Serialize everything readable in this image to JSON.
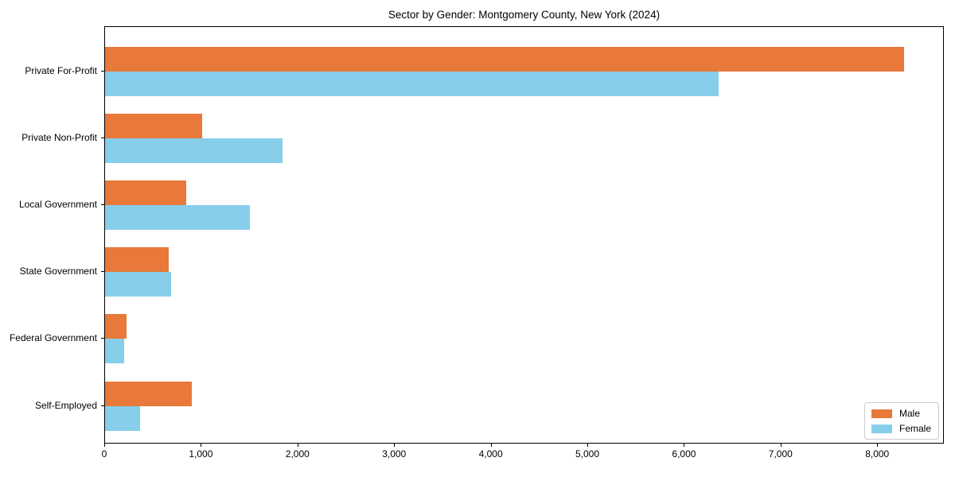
{
  "chart_data": {
    "type": "bar",
    "orientation": "horizontal",
    "title": "Sector by Gender: Montgomery County, New York (2024)",
    "categories": [
      "Private For-Profit",
      "Private Non-Profit",
      "Local Government",
      "State Government",
      "Federal Government",
      "Self-Employed"
    ],
    "series": [
      {
        "name": "Male",
        "color": "#E8793A",
        "values": [
          8272,
          1005,
          840,
          660,
          222,
          898
        ]
      },
      {
        "name": "Female",
        "color": "#87CEEB",
        "values": [
          6352,
          1840,
          1500,
          684,
          197,
          363
        ]
      }
    ],
    "xlabel": "",
    "ylabel": "",
    "xlim": [
      0,
      8690
    ],
    "xticks": {
      "values": [
        0,
        1000,
        2000,
        3000,
        4000,
        5000,
        6000,
        7000,
        8000
      ],
      "labels": [
        "0",
        "1,000",
        "2,000",
        "3,000",
        "4,000",
        "5,000",
        "6,000",
        "7,000",
        "8,000"
      ]
    },
    "grid": false,
    "legend": {
      "position": "lower right"
    }
  }
}
